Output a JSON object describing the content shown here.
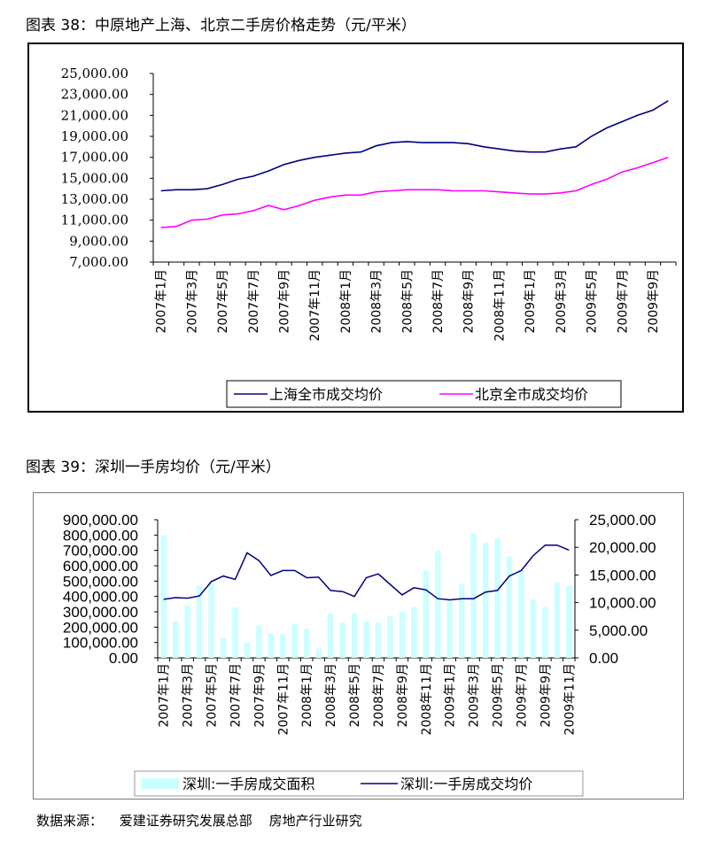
{
  "captions": {
    "chart1": "图表 38：中原地产上海、北京二手房价格走势（元/平米）",
    "chart2": "图表 39：深圳一手房均价（元/平米）"
  },
  "source": {
    "label": "数据来源：",
    "org": "爱建证券研究发展总部",
    "dept": "房地产行业研究"
  },
  "chart_data": [
    {
      "type": "line",
      "title": "中原地产上海、北京二手房价格走势（元/平米）",
      "x": [
        "2007年1月",
        "2007年2月",
        "2007年3月",
        "2007年4月",
        "2007年5月",
        "2007年6月",
        "2007年7月",
        "2007年8月",
        "2007年9月",
        "2007年10月",
        "2007年11月",
        "2007年12月",
        "2008年1月",
        "2008年2月",
        "2008年3月",
        "2008年4月",
        "2008年5月",
        "2008年6月",
        "2008年7月",
        "2008年8月",
        "2008年9月",
        "2008年10月",
        "2008年11月",
        "2008年12月",
        "2009年1月",
        "2009年2月",
        "2009年3月",
        "2009年4月",
        "2009年5月",
        "2009年6月",
        "2009年7月",
        "2009年8月",
        "2009年9月",
        "2009年10月"
      ],
      "tick_labels": [
        "2007年1月",
        "2007年3月",
        "2007年5月",
        "2007年7月",
        "2007年9月",
        "2007年11月",
        "2008年1月",
        "2008年3月",
        "2008年5月",
        "2008年7月",
        "2008年9月",
        "2008年11月",
        "2009年1月",
        "2009年3月",
        "2009年5月",
        "2009年7月",
        "2009年9月"
      ],
      "y_ticks": [
        "25,000.00",
        "23,000.00",
        "21,000.00",
        "19,000.00",
        "17,000.00",
        "15,000.00",
        "13,000.00",
        "11,000.00",
        "9,000.00",
        "7,000.00"
      ],
      "ylim": [
        7000,
        25000
      ],
      "series": [
        {
          "name": "上海全市成交均价",
          "color": "#000080",
          "values": [
            13800,
            13900,
            13900,
            14000,
            14400,
            14900,
            15200,
            15700,
            16300,
            16700,
            17000,
            17200,
            17400,
            17500,
            18100,
            18400,
            18500,
            18400,
            18400,
            18400,
            18300,
            18000,
            17800,
            17600,
            17500,
            17500,
            17800,
            18000,
            19000,
            19800,
            20400,
            21000,
            21500,
            22400
          ]
        },
        {
          "name": "北京全市成交均价",
          "color": "#FF00FF",
          "values": [
            10300,
            10400,
            11000,
            11100,
            11500,
            11600,
            11900,
            12400,
            12000,
            12400,
            12900,
            13200,
            13400,
            13400,
            13700,
            13800,
            13900,
            13900,
            13900,
            13800,
            13800,
            13800,
            13700,
            13600,
            13500,
            13500,
            13600,
            13800,
            14400,
            14900,
            15600,
            16000,
            16500,
            17000
          ]
        }
      ],
      "legend_position": "bottom"
    },
    {
      "type": "bar+line",
      "title": "深圳一手房均价（元/平米）",
      "x": [
        "2007年1月",
        "2007年2月",
        "2007年3月",
        "2007年4月",
        "2007年5月",
        "2007年6月",
        "2007年7月",
        "2007年8月",
        "2007年9月",
        "2007年10月",
        "2007年11月",
        "2007年12月",
        "2008年1月",
        "2008年2月",
        "2008年3月",
        "2008年4月",
        "2008年5月",
        "2008年6月",
        "2008年7月",
        "2008年8月",
        "2008年9月",
        "2008年10月",
        "2008年11月",
        "2008年12月",
        "2009年1月",
        "2009年2月",
        "2009年3月",
        "2009年4月",
        "2009年5月",
        "2009年6月",
        "2009年7月",
        "2009年8月",
        "2009年9月",
        "2009年10月",
        "2009年11月"
      ],
      "tick_labels": [
        "2007年1月",
        "2007年3月",
        "2007年5月",
        "2007年7月",
        "2007年9月",
        "2007年11月",
        "2008年1月",
        "2008年3月",
        "2008年5月",
        "2008年7月",
        "2008年9月",
        "2008年11月",
        "2009年1月",
        "2009年3月",
        "2009年5月",
        "2009年7月",
        "2009年9月",
        "2009年11月"
      ],
      "left_ticks": [
        "900,000.00",
        "800,000.00",
        "700,000.00",
        "600,000.00",
        "500,000.00",
        "400,000.00",
        "300,000.00",
        "200,000.00",
        "100,000.00",
        "0.00"
      ],
      "right_ticks": [
        "25,000.00",
        "20,000.00",
        "15,000.00",
        "10,000.00",
        "5,000.00",
        "0.00"
      ],
      "ylim_left": [
        0,
        900000
      ],
      "ylim_right": [
        0,
        25000
      ],
      "series": [
        {
          "name": "深圳:一手房成交面积",
          "type": "bar",
          "axis": "left",
          "color": "#CCFFFF",
          "values": [
            800000,
            240000,
            340000,
            470000,
            480000,
            130000,
            330000,
            100000,
            210000,
            160000,
            155000,
            220000,
            190000,
            60000,
            290000,
            230000,
            290000,
            240000,
            230000,
            270000,
            300000,
            330000,
            570000,
            700000,
            380000,
            480000,
            810000,
            750000,
            780000,
            660000,
            570000,
            380000,
            330000,
            490000,
            470000
          ]
        },
        {
          "name": "深圳:一手房成交均价",
          "type": "line",
          "axis": "right",
          "color": "#000080",
          "values": [
            10600,
            10900,
            10800,
            11200,
            13800,
            14800,
            14200,
            19000,
            17600,
            14900,
            15800,
            15800,
            14500,
            14600,
            12200,
            12000,
            11100,
            14500,
            15200,
            13300,
            11400,
            12700,
            12300,
            10700,
            10500,
            10700,
            10700,
            11900,
            12200,
            14800,
            15800,
            18500,
            20400,
            20400,
            19500
          ]
        }
      ],
      "legend_position": "bottom"
    }
  ]
}
